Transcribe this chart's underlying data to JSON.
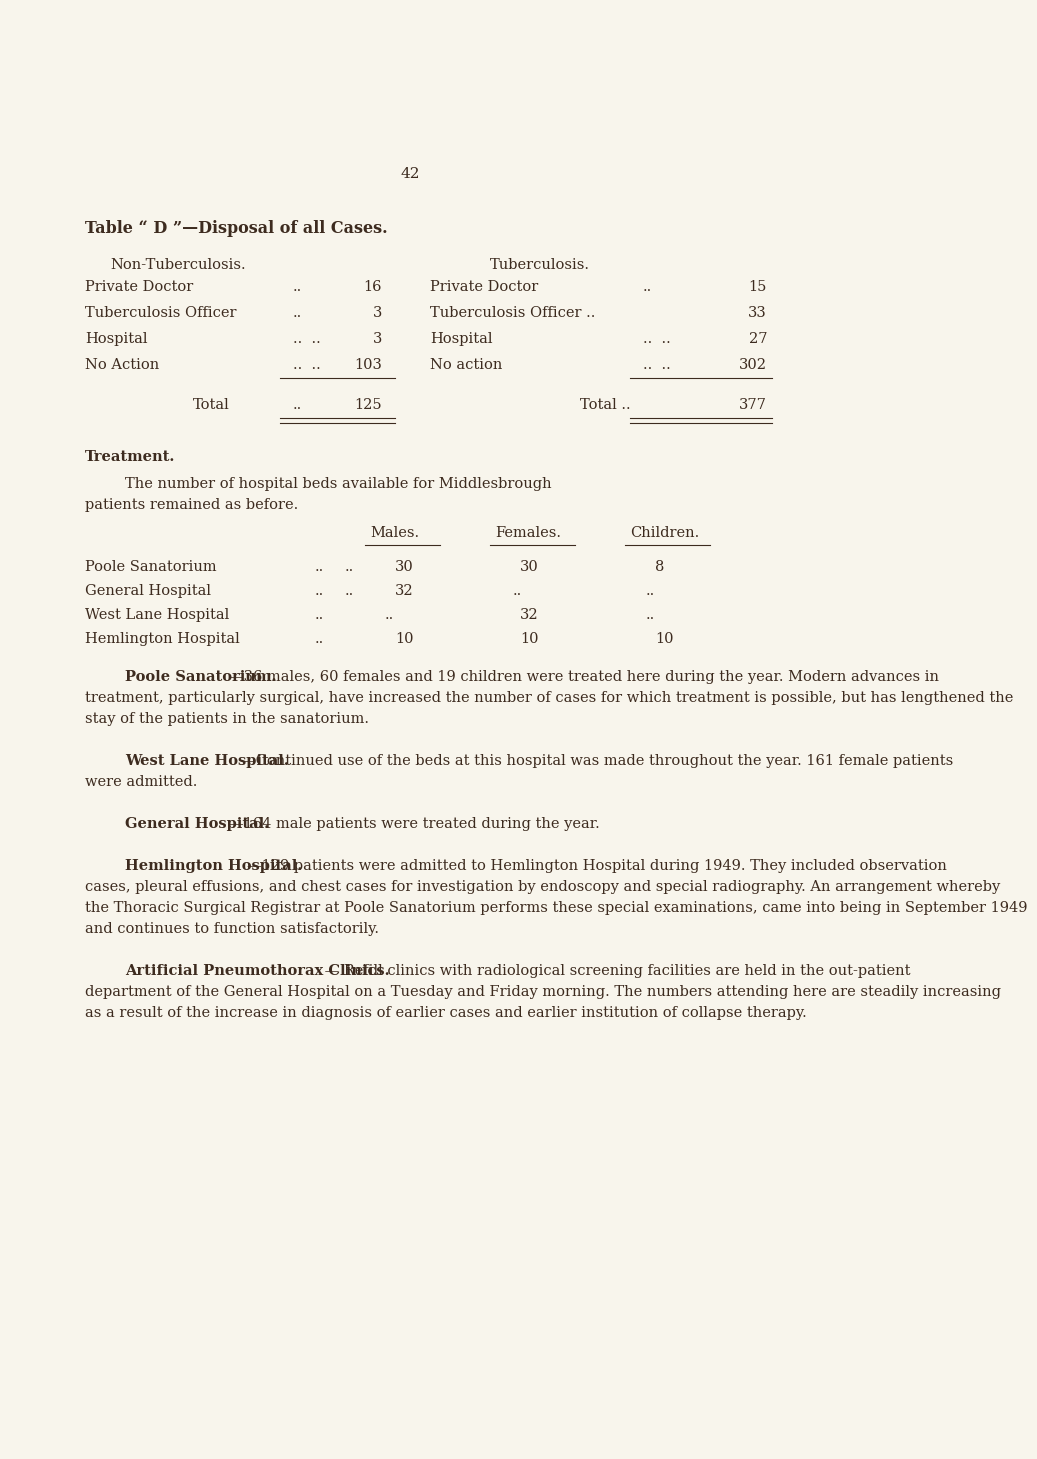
{
  "bg_color": "#f8f5ec",
  "text_color": "#3d2b1f",
  "page_number": "42",
  "title": "Table “ D ”—Disposal of all Cases.",
  "non_tb_header": "Non-Tuberculosis.",
  "tb_header": "Tuberculosis.",
  "non_tb_rows": [
    [
      "Private Doctor",
      "..",
      "16"
    ],
    [
      "Tuberculosis Officer",
      "..",
      "3"
    ],
    [
      "Hospital",
      "..",
      "3"
    ],
    [
      "No Action",
      "..",
      "103"
    ]
  ],
  "tb_rows": [
    [
      "Private Doctor",
      "..",
      "15"
    ],
    [
      "Tuberculosis Officer ..",
      "",
      "33"
    ],
    [
      "Hospital",
      "..",
      "27"
    ],
    [
      "No action",
      "..",
      "302"
    ]
  ],
  "non_tb_total_label": "Total",
  "non_tb_total_dots": "..",
  "non_tb_total": "125",
  "tb_total_label": "Total ..",
  "tb_total": "377",
  "treatment_heading": "Treatment.",
  "treatment_intro_1": "The number of hospital beds available for Middlesbrough",
  "treatment_intro_2": "patients remained as before.",
  "beds_col_headers": [
    "Males.",
    "Females.",
    "Children."
  ],
  "beds_rows": [
    [
      "Poole Sanatorium",
      "..",
      "..",
      "30",
      "30",
      "8"
    ],
    [
      "General Hospital",
      "..",
      "..",
      "32",
      "..",
      ".."
    ],
    [
      "West Lane Hospital",
      "..",
      "..",
      "..",
      "32",
      ".."
    ],
    [
      "Hemlington Hospital",
      "..",
      "..",
      "10",
      "10",
      "10"
    ]
  ],
  "para_poole_h": "Poole Sanatorium.",
  "para_poole_l1": "—36 males, 60 females and 19 children were treated here during the year. Modern advances in",
  "para_poole_l2": "treatment, particularly surgical, have increased the number of cases for which treatment is possible, but has lengthened the",
  "para_poole_l3": "stay of the patients in the sanatorium.",
  "para_westlane_h": "West Lane Hospital.",
  "para_westlane_l1": "—Continued use of the beds at this hospital was made throughout the year. 161 female patients",
  "para_westlane_l2": "were admitted.",
  "para_general_h": "General Hospital.",
  "para_general_l1": "—164 male patients were treated during the year.",
  "para_hemlington_h": "Hemlington Hospital.",
  "para_hemlington_l1": "—129 patients were admitted to Hemlington Hospital during 1949. They included observation",
  "para_hemlington_l2": "cases, pleural effusions, and chest cases for investigation by endoscopy and special radiography. An arrangement whereby",
  "para_hemlington_l3": "the Thoracic Surgical Registrar at Poole Sanatorium performs these special examinations, came into being in September 1949",
  "para_hemlington_l4": "and continues to function satisfactorily.",
  "para_ap_h": "Artificial Pneumothorax Clinics.",
  "para_ap_l1": " — Refill clinics with radiological screening facilities are held in the out-patient",
  "para_ap_l2": "department of the General Hospital on a Tuesday and Friday morning. The numbers attending here are steadily increasing",
  "para_ap_l3": "as a result of the increase in diagnosis of earlier cases and earlier institution of collapse therapy."
}
